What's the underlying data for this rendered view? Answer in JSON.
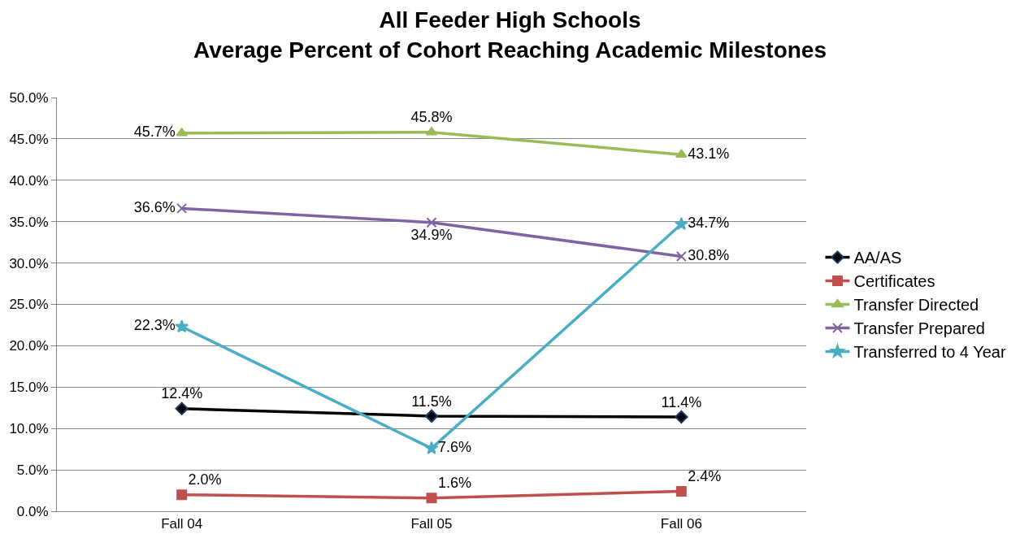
{
  "chart_data": {
    "type": "line",
    "title": "All Feeder High Schools\nAverage Percent of Cohort Reaching Academic Milestones",
    "categories": [
      "Fall 04",
      "Fall 05",
      "Fall 06"
    ],
    "series": [
      {
        "name": "AA/AS",
        "color": "#000000",
        "marker": "diamond",
        "values": [
          12.4,
          11.5,
          11.4
        ],
        "value_labels": [
          "12.4%",
          "11.5%",
          "11.4%"
        ]
      },
      {
        "name": "Certificates",
        "color": "#c0504d",
        "marker": "square",
        "values": [
          2.0,
          1.6,
          2.4
        ],
        "value_labels": [
          "2.0%",
          "1.6%",
          "2.4%"
        ]
      },
      {
        "name": "Transfer Directed",
        "color": "#9bbb59",
        "marker": "triangle",
        "values": [
          45.7,
          45.8,
          43.1
        ],
        "value_labels": [
          "45.7%",
          "45.8%",
          "43.1%"
        ]
      },
      {
        "name": "Transfer Prepared",
        "color": "#8064a2",
        "marker": "cross",
        "values": [
          36.6,
          34.9,
          30.8
        ],
        "value_labels": [
          "36.6%",
          "34.9%",
          "30.8%"
        ]
      },
      {
        "name": "Transferred to 4 Year",
        "color": "#4bacc6",
        "marker": "star",
        "values": [
          22.3,
          7.6,
          34.7
        ],
        "value_labels": [
          "22.3%",
          "7.6%",
          "34.7%"
        ]
      }
    ],
    "ylim": [
      0,
      50
    ],
    "yticks": [
      {
        "value": 0,
        "label": "0.0%"
      },
      {
        "value": 5,
        "label": "5.0%"
      },
      {
        "value": 10,
        "label": "10.0%"
      },
      {
        "value": 15,
        "label": "15.0%"
      },
      {
        "value": 20,
        "label": "20.0%"
      },
      {
        "value": 25,
        "label": "25.0%"
      },
      {
        "value": 30,
        "label": "30.0%"
      },
      {
        "value": 35,
        "label": "35.0%"
      },
      {
        "value": 40,
        "label": "40.0%"
      },
      {
        "value": 45,
        "label": "45.0%"
      },
      {
        "value": 50,
        "label": "50.0%"
      }
    ],
    "grid": "y",
    "legend": "right",
    "line_style": "solid"
  }
}
